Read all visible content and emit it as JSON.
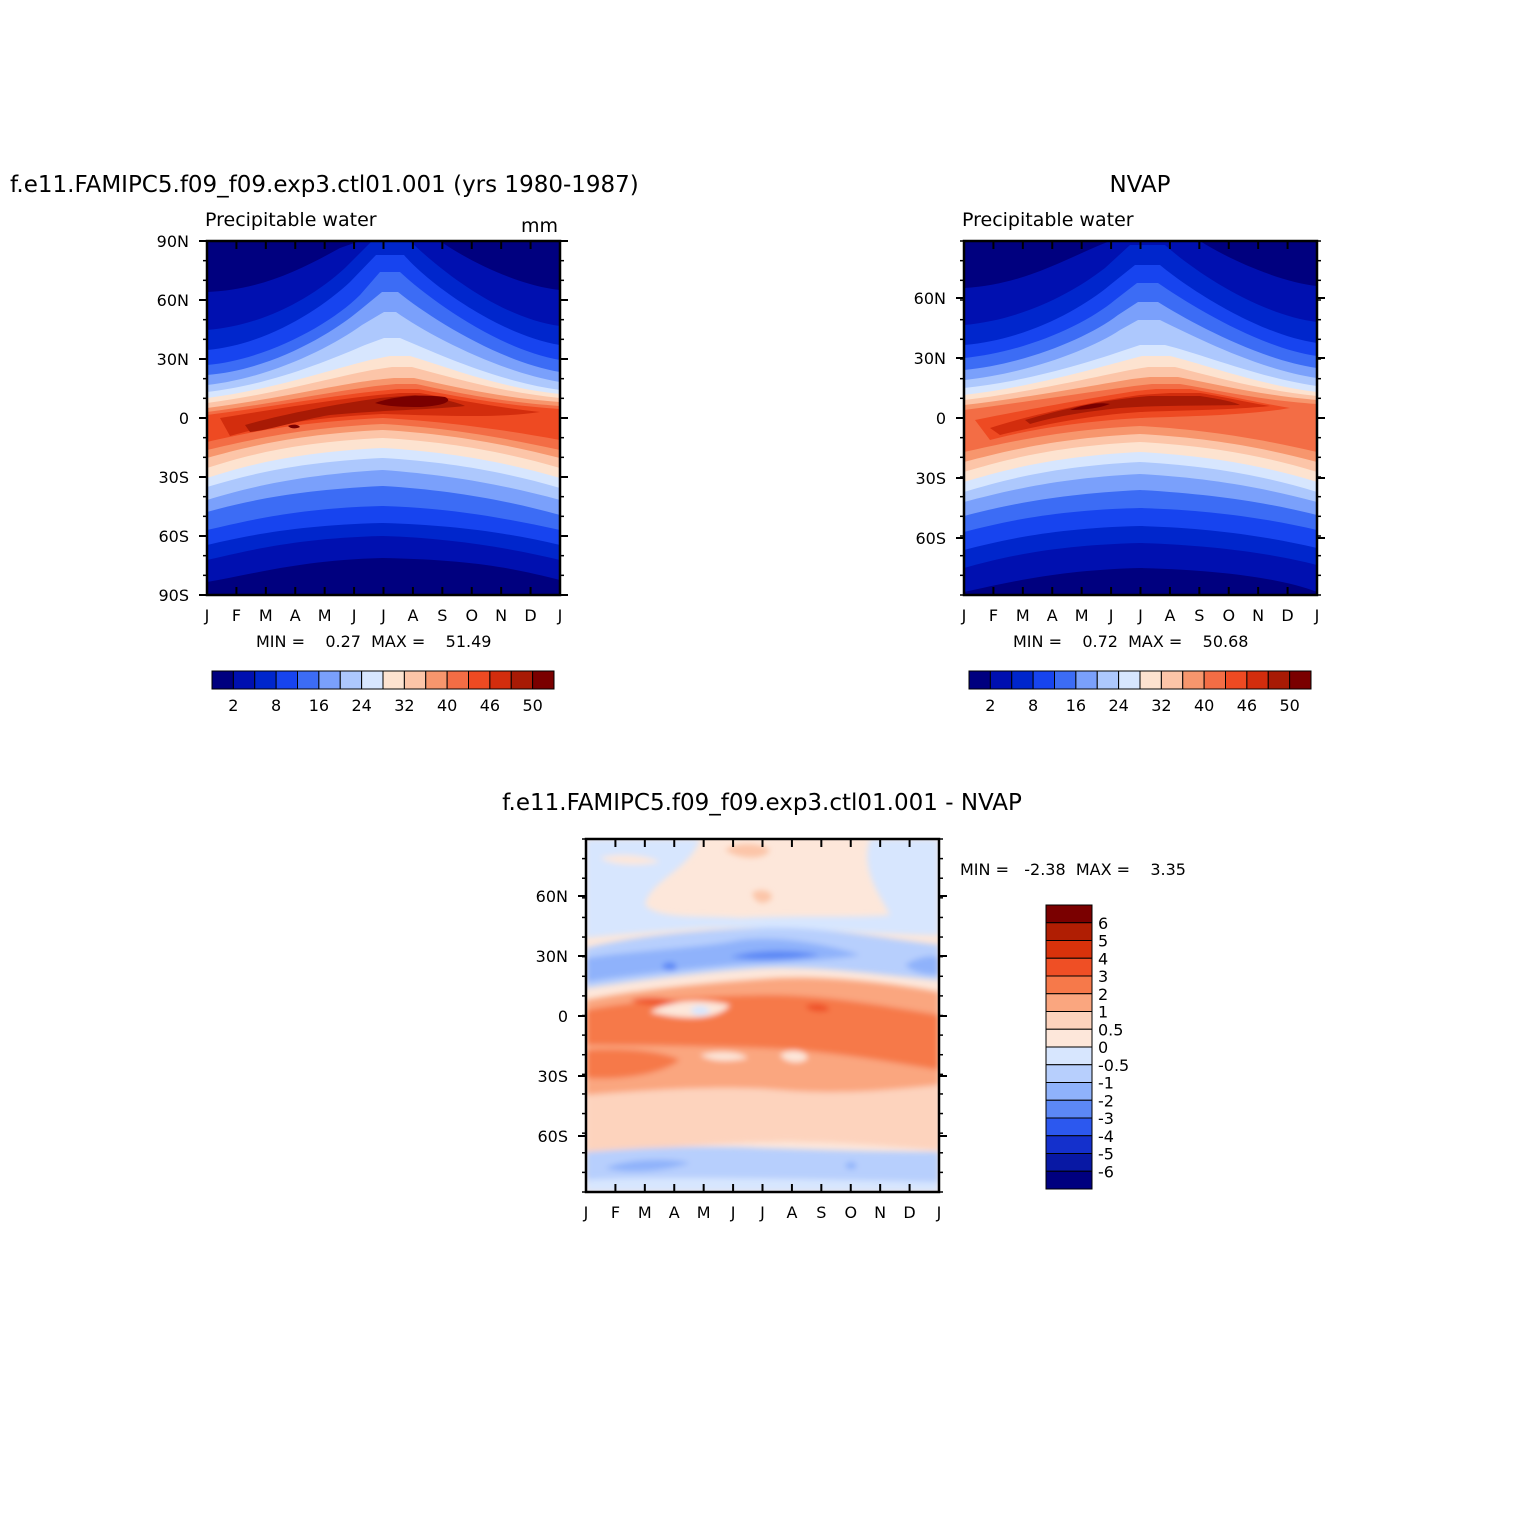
{
  "chart_data": [
    {
      "type": "heatmap",
      "title": "f.e11.FAMIPC5.f09_f09.exp3.ctl01.001 (yrs 1980-1987)",
      "subtitle": "Precipitable water",
      "units": "mm",
      "x_ticks": [
        "J",
        "F",
        "M",
        "A",
        "M",
        "J",
        "J",
        "A",
        "S",
        "O",
        "N",
        "D",
        "J"
      ],
      "y_ticks": [
        "90N",
        "60N",
        "30N",
        "0",
        "30S",
        "60S",
        "90S"
      ],
      "stats": "MIN =    0.27  MAX =    51.49",
      "colorbar": {
        "levels": [
          "2",
          "8",
          "16",
          "24",
          "32",
          "40",
          "46",
          "50"
        ],
        "colors": [
          "#00007f",
          "#0010b0",
          "#0026cc",
          "#1744ef",
          "#3c6cf5",
          "#7aa0fb",
          "#adc8fd",
          "#d7e6fe",
          "#fde3d0",
          "#fcc5a8",
          "#f7966d",
          "#f36d45",
          "#ee4a22",
          "#d32d0d",
          "#a81a05",
          "#7a0000"
        ]
      }
    },
    {
      "type": "heatmap",
      "title": "NVAP",
      "subtitle": "Precipitable water",
      "x_ticks": [
        "J",
        "F",
        "M",
        "A",
        "M",
        "J",
        "J",
        "A",
        "S",
        "O",
        "N",
        "D",
        "J"
      ],
      "y_ticks": [
        "60N",
        "30N",
        "0",
        "30S",
        "60S"
      ],
      "stats": "MIN =    0.72  MAX =    50.68",
      "colorbar": {
        "levels": [
          "2",
          "8",
          "16",
          "24",
          "32",
          "40",
          "46",
          "50"
        ],
        "colors": [
          "#00007f",
          "#0010b0",
          "#0026cc",
          "#1744ef",
          "#3c6cf5",
          "#7aa0fb",
          "#adc8fd",
          "#d7e6fe",
          "#fde3d0",
          "#fcc5a8",
          "#f7966d",
          "#f36d45",
          "#ee4a22",
          "#d32d0d",
          "#a81a05",
          "#7a0000"
        ]
      }
    },
    {
      "type": "heatmap",
      "title": "f.e11.FAMIPC5.f09_f09.exp3.ctl01.001 - NVAP",
      "x_ticks": [
        "J",
        "F",
        "M",
        "A",
        "M",
        "J",
        "J",
        "A",
        "S",
        "O",
        "N",
        "D",
        "J"
      ],
      "y_ticks": [
        "60N",
        "30N",
        "0",
        "30S",
        "60S"
      ],
      "stats": "MIN =   -2.38  MAX =    3.35",
      "colorbar": {
        "levels": [
          "6",
          "5",
          "4",
          "3",
          "2",
          "1",
          "0.5",
          "0",
          "-0.5",
          "-1",
          "-2",
          "-3",
          "-4",
          "-5",
          "-6"
        ],
        "colors": [
          "#7a0000",
          "#b01e03",
          "#d8320b",
          "#ef4f25",
          "#f6794a",
          "#faa67f",
          "#fdd3bd",
          "#fde7da",
          "#d7e6fe",
          "#b7cffd",
          "#8fb2fb",
          "#5c88f6",
          "#2c58ef",
          "#1430cc",
          "#0818a4",
          "#00007f"
        ]
      }
    }
  ]
}
